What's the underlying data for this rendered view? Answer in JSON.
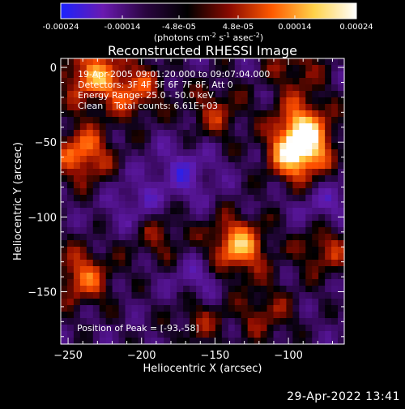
{
  "colorbar": {
    "ticks": [
      "-0.00024",
      "-0.00014",
      "-4.8e-05",
      "4.8e-05",
      "0.00014",
      "0.00024"
    ],
    "tick_values": [
      -0.00024,
      -0.00014,
      -4.8e-05,
      4.8e-05,
      0.00014,
      0.00024
    ],
    "range": [
      -0.00024,
      0.00024
    ],
    "unit": {
      "lead": "(photons cm",
      "sup1": "-2",
      "mid1": " s",
      "sup2": "-1",
      "mid2": " asec",
      "sup3": "-2",
      "tail": ")"
    },
    "colors": [
      "#1a22ff",
      "#6a1ab0",
      "#2a0540",
      "#000000",
      "#8a0a00",
      "#ff5a00",
      "#ffd24a",
      "#ffffff"
    ]
  },
  "chart_data": {
    "type": "heatmap",
    "title": "Reconstructed RHESSI Image",
    "xlabel": "Heliocentric X (arcsec)",
    "ylabel": "Heliocentric Y (arcsec)",
    "xlim": [
      -255,
      -62
    ],
    "ylim": [
      -185,
      6
    ],
    "x_ticks": [
      -250,
      -200,
      -150,
      -100
    ],
    "y_ticks": [
      0,
      -50,
      -100,
      -150
    ],
    "x_tick_labels": [
      "−250",
      "−200",
      "−150",
      "−100"
    ],
    "y_tick_labels": [
      "0",
      "−50",
      "−100",
      "−150"
    ],
    "annotations": [
      "19-Apr-2005 09:01:20.000 to 09:07:04.000",
      "Detectors: 3F 4F 5F 6F 7F 8F, Att 0",
      "Energy Range: 25.0 - 50.0 keV",
      "Clean    Total counts: 6.61E+03"
    ],
    "peak_label": "Position of Peak = [-93,-58]",
    "peak_position": [
      -93,
      -58
    ],
    "sources": [
      {
        "x": -93,
        "y": -58,
        "amp": 1.0
      },
      {
        "x": -90,
        "y": -40,
        "amp": 0.7
      },
      {
        "x": -135,
        "y": -120,
        "amp": 0.9
      },
      {
        "x": -240,
        "y": -58,
        "amp": 0.75
      },
      {
        "x": -235,
        "y": -5,
        "amp": 0.75
      },
      {
        "x": -205,
        "y": -15,
        "amp": 0.6
      },
      {
        "x": -240,
        "y": -140,
        "amp": 0.65
      },
      {
        "x": -150,
        "y": -30,
        "amp": 0.45
      },
      {
        "x": -190,
        "y": -110,
        "amp": 0.5
      },
      {
        "x": -75,
        "y": -120,
        "amp": 0.55
      },
      {
        "x": -160,
        "y": -165,
        "amp": 0.45
      },
      {
        "x": -115,
        "y": -165,
        "amp": 0.4
      },
      {
        "x": -95,
        "y": 0,
        "amp": 0.4
      },
      {
        "x": -170,
        "y": -70,
        "amp": -0.35
      },
      {
        "x": -200,
        "y": -95,
        "amp": -0.4
      },
      {
        "x": -160,
        "y": -145,
        "amp": -0.4
      },
      {
        "x": -75,
        "y": -95,
        "amp": -0.35
      }
    ]
  },
  "footer": {
    "timestamp": "29-Apr-2022 13:41"
  }
}
